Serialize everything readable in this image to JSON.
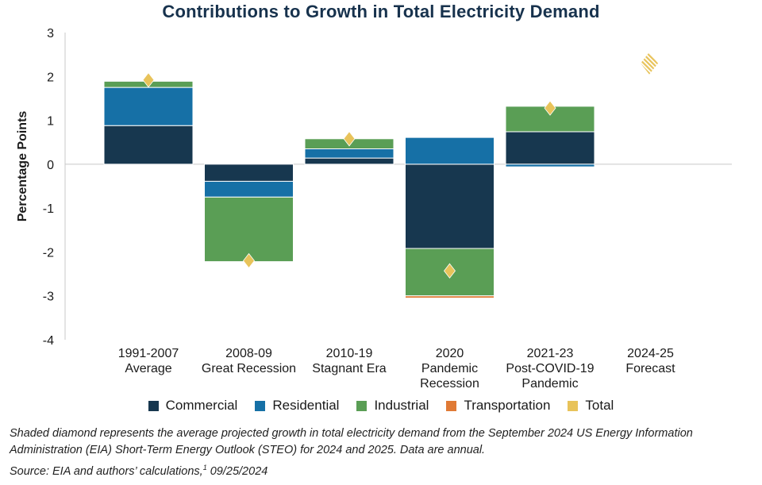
{
  "chart_data": {
    "type": "bar",
    "stacked": true,
    "title": "Contributions to Growth in Total Electricity Demand",
    "xlabel": "",
    "ylabel": "Percentage Points",
    "ylim": [
      -4,
      3
    ],
    "yticks": [
      "3",
      "2",
      "1",
      "0",
      "-1",
      "-2",
      "-3",
      "-4"
    ],
    "ytick_values": [
      3,
      2,
      1,
      0,
      -1,
      -2,
      -3,
      -4
    ],
    "categories": [
      [
        "1991-2007",
        "Average"
      ],
      [
        "2008-09",
        "Great Recession"
      ],
      [
        "2010-19",
        "Stagnant Era"
      ],
      [
        "2020",
        "Pandemic",
        "Recession"
      ],
      [
        "2021-23",
        "Post-COVID-19",
        "Pandemic"
      ],
      [
        "2024-25",
        "Forecast"
      ]
    ],
    "series": [
      {
        "name": "Commercial",
        "color": "#17374f",
        "values": [
          0.88,
          -0.39,
          0.14,
          -1.92,
          0.74,
          null
        ]
      },
      {
        "name": "Residential",
        "color": "#1670a6",
        "values": [
          0.87,
          -0.36,
          0.21,
          0.61,
          -0.06,
          null
        ]
      },
      {
        "name": "Industrial",
        "color": "#5a9e55",
        "values": [
          0.14,
          -1.47,
          0.23,
          -1.08,
          0.58,
          null
        ]
      },
      {
        "name": "Transportation",
        "color": "#e07a35",
        "values": [
          0.0,
          0.0,
          0.0,
          -0.05,
          0.0,
          null
        ]
      }
    ],
    "total": {
      "name": "Total",
      "color": "#e8c35a",
      "values": [
        1.92,
        -2.2,
        0.58,
        -2.43,
        1.28,
        null
      ]
    },
    "forecast_total": {
      "name": "Total",
      "color": "#e8c35a",
      "value": 2.3,
      "style": "shaded"
    },
    "legend": [
      {
        "label": "Commercial",
        "color": "#17374f"
      },
      {
        "label": "Residential",
        "color": "#1670a6"
      },
      {
        "label": "Industrial",
        "color": "#5a9e55"
      },
      {
        "label": "Transportation",
        "color": "#e07a35"
      },
      {
        "label": "Total",
        "color": "#e8c35a"
      }
    ],
    "legend_position": "bottom",
    "grid": false
  },
  "note": "Shaded diamond represents the average projected growth in total electricity demand from the September 2024 US Energy Information Administration (EIA) Short-Term Energy Outlook (STEO) for 2024 and 2025. Data are annual.",
  "source": "Source: EIA and authors’ calculations,",
  "source_sup": "1",
  "source_date": " 09/25/2024"
}
